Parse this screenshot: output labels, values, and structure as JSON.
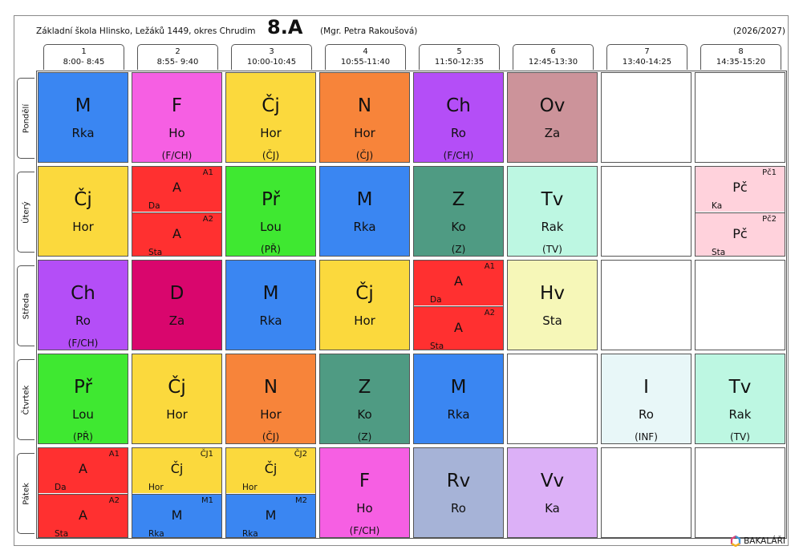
{
  "header": {
    "school": "Základní škola Hlinsko, Ležáků 1449, okres Chrudim",
    "class_name": "8.A",
    "teacher": "(Mgr. Petra Rakoušová)",
    "year": "(2026/2027)"
  },
  "periods": [
    {
      "num": "1",
      "time": "8:00- 8:45"
    },
    {
      "num": "2",
      "time": "8:55- 9:40"
    },
    {
      "num": "3",
      "time": "10:00-10:45"
    },
    {
      "num": "4",
      "time": "10:55-11:40"
    },
    {
      "num": "5",
      "time": "11:50-12:35"
    },
    {
      "num": "6",
      "time": "12:45-13:30"
    },
    {
      "num": "7",
      "time": "13:40-14:25"
    },
    {
      "num": "8",
      "time": "14:35-15:20"
    }
  ],
  "days": [
    "Pondělí",
    "Úterý",
    "Středa",
    "Čtvrtek",
    "Pátek"
  ],
  "colors": {
    "M": "#3a86f2",
    "F": "#f65fe3",
    "Čj": "#fbd93d",
    "N": "#f7843a",
    "Ch": "#b44ef7",
    "Ov": "#cc939a",
    "A": "#ff3030",
    "Př": "#3fe831",
    "Z": "#4f9b83",
    "Tv": "#bdf7e2",
    "Pč": "#ffd2dc",
    "D": "#d9066d",
    "Hv": "#f6f7b8",
    "I": "#e8f7f8",
    "Rv": "#a6b3d7",
    "Vv": "#dcb0f7"
  },
  "schedule": [
    [
      {
        "s": "M",
        "t": "Rka"
      },
      {
        "s": "F",
        "t": "Ho",
        "g": "(F/CH)"
      },
      {
        "s": "Čj",
        "t": "Hor",
        "g": "(ČJ)"
      },
      {
        "s": "N",
        "t": "Hor",
        "g": "(ČJ)"
      },
      {
        "s": "Ch",
        "t": "Ro",
        "g": "(F/CH)"
      },
      {
        "s": "Ov",
        "t": "Za"
      },
      null,
      null
    ],
    [
      {
        "s": "Čj",
        "t": "Hor"
      },
      {
        "split": [
          {
            "s": "A",
            "t": "Da",
            "g": "A1"
          },
          {
            "s": "A",
            "t": "Sta",
            "g": "A2"
          }
        ]
      },
      {
        "s": "Př",
        "t": "Lou",
        "g": "(PŘ)"
      },
      {
        "s": "M",
        "t": "Rka"
      },
      {
        "s": "Z",
        "t": "Ko",
        "g": "(Z)"
      },
      {
        "s": "Tv",
        "t": "Rak",
        "g": "(TV)"
      },
      null,
      {
        "split": [
          {
            "s": "Pč",
            "t": "Ka",
            "g": "Pč1"
          },
          {
            "s": "Pč",
            "t": "Sta",
            "g": "Pč2"
          }
        ]
      }
    ],
    [
      {
        "s": "Ch",
        "t": "Ro",
        "g": "(F/CH)"
      },
      {
        "s": "D",
        "t": "Za"
      },
      {
        "s": "M",
        "t": "Rka"
      },
      {
        "s": "Čj",
        "t": "Hor"
      },
      {
        "split": [
          {
            "s": "A",
            "t": "Da",
            "g": "A1"
          },
          {
            "s": "A",
            "t": "Sta",
            "g": "A2"
          }
        ]
      },
      {
        "s": "Hv",
        "t": "Sta"
      },
      null,
      null
    ],
    [
      {
        "s": "Př",
        "t": "Lou",
        "g": "(PŘ)"
      },
      {
        "s": "Čj",
        "t": "Hor"
      },
      {
        "s": "N",
        "t": "Hor",
        "g": "(ČJ)"
      },
      {
        "s": "Z",
        "t": "Ko",
        "g": "(Z)"
      },
      {
        "s": "M",
        "t": "Rka"
      },
      null,
      {
        "s": "I",
        "t": "Ro",
        "g": "(INF)"
      },
      {
        "s": "Tv",
        "t": "Rak",
        "g": "(TV)"
      }
    ],
    [
      {
        "split": [
          {
            "s": "A",
            "t": "Da",
            "g": "A1"
          },
          {
            "s": "A",
            "t": "Sta",
            "g": "A2"
          }
        ]
      },
      {
        "split": [
          {
            "s": "Čj",
            "t": "Hor",
            "g": "ČJ1"
          },
          {
            "s": "M",
            "t": "Rka",
            "g": "M1"
          }
        ]
      },
      {
        "split": [
          {
            "s": "Čj",
            "t": "Hor",
            "g": "ČJ2"
          },
          {
            "s": "M",
            "t": "Rka",
            "g": "M2"
          }
        ]
      },
      {
        "s": "F",
        "t": "Ho",
        "g": "(F/CH)"
      },
      {
        "s": "Rv",
        "t": "Ro"
      },
      {
        "s": "Vv",
        "t": "Ka"
      },
      null,
      null
    ]
  ],
  "logo": {
    "text": "BAKALÁŘI",
    "icon": "bakalari-logo-icon"
  }
}
